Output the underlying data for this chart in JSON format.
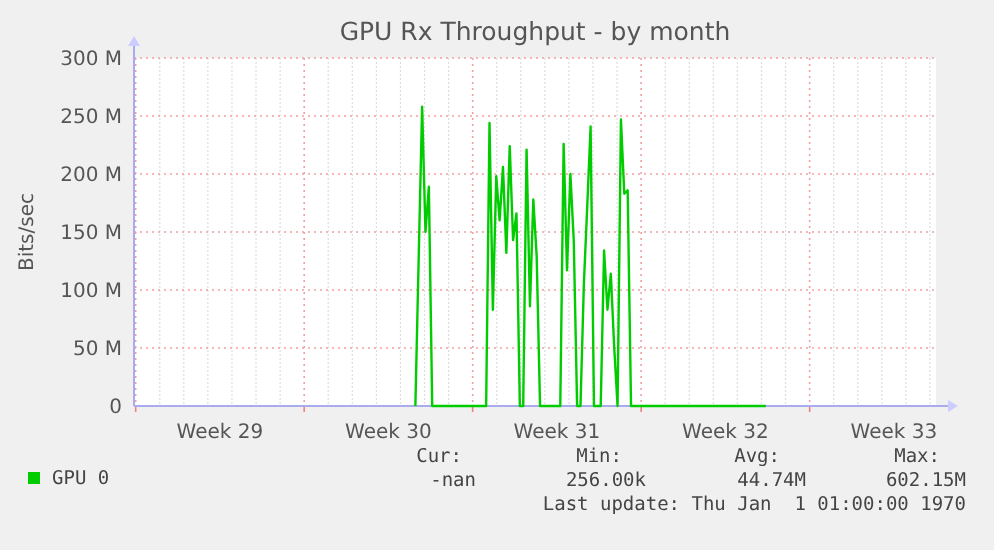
{
  "chart_data": {
    "type": "line",
    "title": "GPU Rx Throughput - by month",
    "ylabel": "Bits/sec",
    "categories": [
      null,
      null,
      null,
      null,
      null,
      null,
      null,
      null,
      null,
      null,
      null,
      null,
      null,
      null,
      null,
      null,
      null,
      null,
      null,
      null,
      null,
      null,
      null,
      null,
      null,
      "Week 29",
      null,
      null,
      null,
      null,
      null,
      null,
      null,
      null,
      null,
      null,
      null,
      null,
      null,
      null,
      null,
      null,
      null,
      null,
      null,
      null,
      null,
      null,
      null,
      null,
      null,
      null,
      null,
      null,
      null,
      null,
      null,
      null,
      null,
      null,
      null,
      null,
      null,
      null,
      null,
      null,
      null,
      null,
      null,
      null,
      null,
      null,
      null,
      null,
      null,
      "Week 30",
      null,
      null,
      null,
      null,
      null,
      null,
      null,
      null,
      null,
      null,
      null,
      null,
      null,
      null,
      null,
      null,
      null,
      null,
      null,
      null,
      null,
      null,
      null,
      null,
      null,
      null,
      null,
      null,
      null,
      null,
      null,
      null,
      null,
      null,
      null,
      null,
      null,
      null,
      null,
      null,
      null,
      null,
      null,
      null,
      null,
      null,
      null,
      null,
      null,
      "Week 31",
      null,
      null,
      null,
      null,
      null,
      null,
      null,
      null,
      null,
      null,
      null,
      null,
      null,
      null,
      null,
      null,
      null,
      null,
      null,
      null,
      null,
      null,
      null,
      null,
      null,
      null,
      null,
      null,
      null,
      null,
      null,
      null,
      null,
      null,
      null,
      null,
      null,
      null,
      null,
      null,
      null,
      null,
      null,
      null,
      null,
      null,
      null,
      null,
      null,
      "Week 32",
      null,
      null,
      null,
      null,
      null,
      null,
      null,
      null,
      null,
      null,
      null,
      null,
      null,
      null,
      null,
      null,
      null,
      null,
      null,
      null,
      null,
      null,
      null,
      null,
      null,
      null,
      null,
      null,
      null,
      null,
      null,
      null,
      null,
      null,
      null,
      null,
      null,
      null,
      null,
      null,
      null,
      null,
      null,
      null,
      null,
      null,
      null,
      null,
      null,
      "Week 33",
      null,
      null,
      null,
      null,
      null,
      null,
      null,
      null,
      null,
      null,
      null,
      null
    ],
    "ylim": [
      0,
      300
    ],
    "yticks": [
      {
        "value": 0,
        "label": "0"
      },
      {
        "value": 50,
        "label": "50 M"
      },
      {
        "value": 100,
        "label": "100 M"
      },
      {
        "value": 150,
        "label": "150 M"
      },
      {
        "value": 200,
        "label": "200 M"
      },
      {
        "value": 250,
        "label": "250 M"
      },
      {
        "value": 300,
        "label": "300 M"
      }
    ],
    "grid": true,
    "legend": "bottom",
    "series": [
      {
        "name": "GPU 0",
        "color": "#00cc00",
        "values": [
          null,
          null,
          null,
          null,
          null,
          null,
          null,
          null,
          null,
          null,
          null,
          null,
          null,
          null,
          null,
          null,
          null,
          null,
          null,
          null,
          null,
          null,
          null,
          null,
          null,
          null,
          null,
          null,
          null,
          null,
          null,
          null,
          null,
          null,
          null,
          null,
          null,
          null,
          null,
          null,
          null,
          null,
          null,
          null,
          null,
          null,
          null,
          null,
          null,
          null,
          null,
          null,
          null,
          null,
          null,
          null,
          null,
          null,
          null,
          null,
          null,
          null,
          null,
          null,
          null,
          null,
          null,
          null,
          null,
          null,
          null,
          null,
          null,
          null,
          null,
          null,
          null,
          null,
          null,
          null,
          null,
          null,
          null,
          0,
          130,
          258,
          150,
          189,
          0,
          0,
          0,
          0,
          0,
          0,
          0,
          0,
          0,
          0,
          0,
          0,
          0,
          0,
          0,
          0,
          0,
          244,
          83,
          198,
          160,
          206,
          132,
          224,
          143,
          166,
          0,
          0,
          221,
          86,
          178,
          129,
          0,
          0,
          0,
          0,
          0,
          0,
          0,
          226,
          117,
          200,
          143,
          0,
          0,
          105,
          172,
          241,
          0,
          0,
          0,
          134,
          83,
          114,
          51,
          0,
          247,
          183,
          186,
          0,
          0,
          0,
          0,
          0,
          0,
          0,
          0,
          0,
          0,
          0,
          0,
          0,
          0,
          0,
          0,
          0,
          0,
          0,
          0,
          0,
          0,
          0,
          0,
          0,
          0,
          0,
          0,
          0,
          0,
          0,
          0,
          0,
          0,
          0,
          0,
          0,
          0,
          0,
          0,
          0,
          null,
          null,
          null,
          null,
          null,
          null,
          null,
          null,
          null,
          null,
          null,
          null,
          null,
          null,
          null,
          null,
          null,
          null,
          null,
          null,
          null,
          null,
          null,
          null,
          null,
          null,
          null,
          null,
          null,
          null,
          null,
          null,
          null,
          null,
          null,
          null,
          null,
          null,
          null,
          null,
          null,
          null,
          null,
          null,
          null,
          null,
          null,
          null,
          null,
          null
        ]
      }
    ],
    "annotations": [
      "Cur:",
      "Min:",
      "Avg:",
      "Max:",
      "-nan",
      "256.00k",
      "44.74M",
      "602.15M",
      "Last update: Thu Jan  1 01:00:00 1970"
    ]
  }
}
